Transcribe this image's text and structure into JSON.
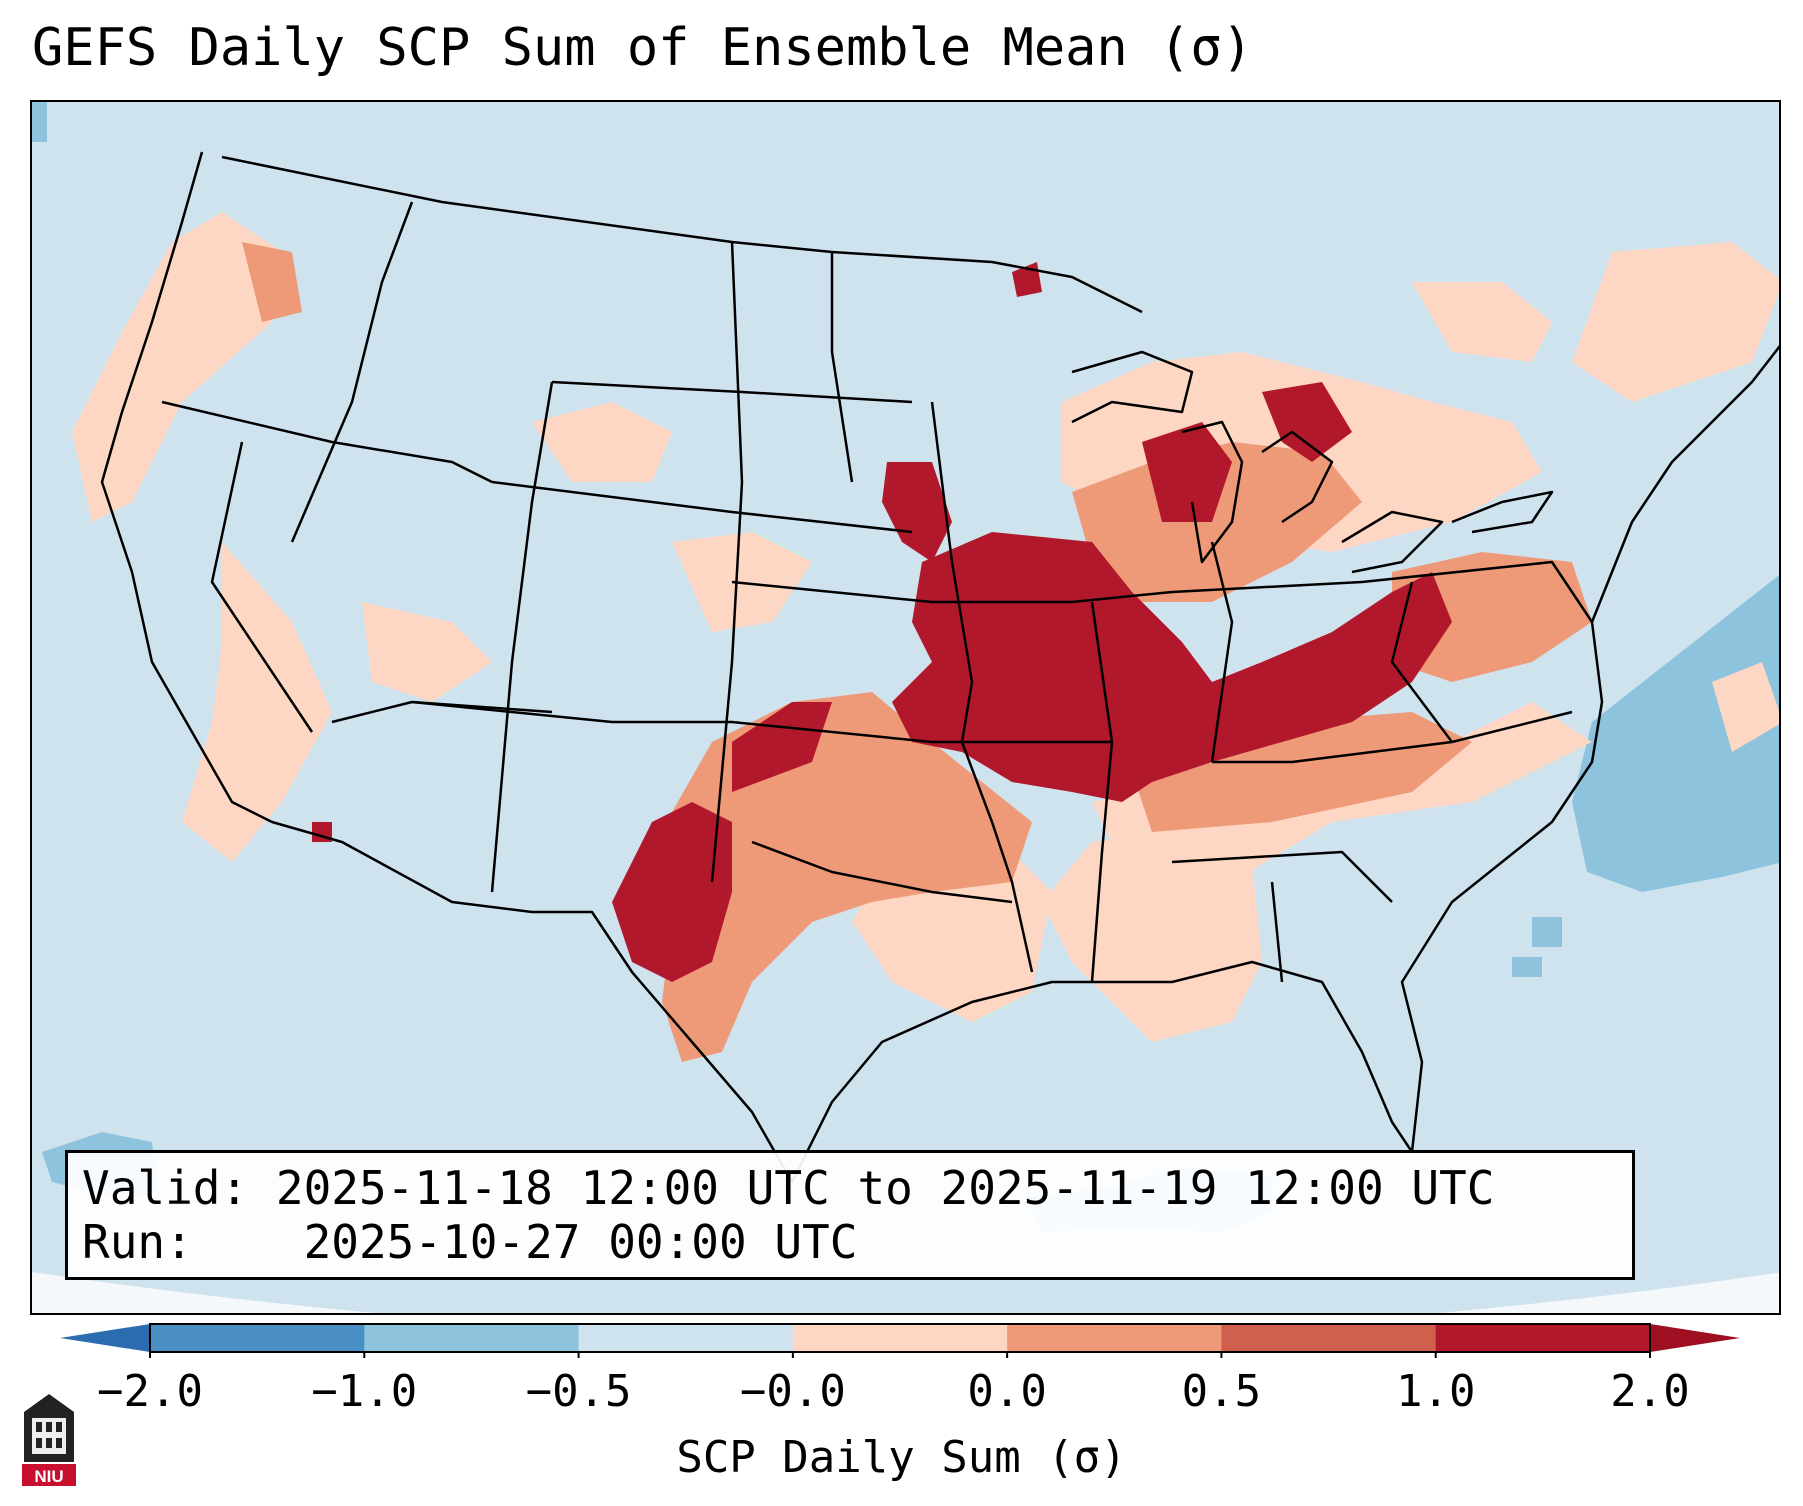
{
  "title": "GEFS Daily SCP Sum of Ensemble Mean (σ)",
  "info": {
    "valid_label": "Valid:",
    "valid_value": "2025-11-18 12:00 UTC to 2025-11-19 12:00 UTC",
    "run_label": "Run:",
    "run_value": "2025-10-27 00:00 UTC"
  },
  "colorbar": {
    "label": "SCP Daily Sum (σ)",
    "ticks": [
      "−2.0",
      "−1.0",
      "−0.5",
      "−0.0",
      "0.0",
      "0.5",
      "1.0",
      "2.0"
    ],
    "colors": [
      "#4a90c4",
      "#8ec3de",
      "#cfe3ef",
      "#fdd7c4",
      "#ee9a78",
      "#d05f4e",
      "#b2182b"
    ],
    "extend_low_color": "#2b6cb0",
    "extend_high_color": "#9e0f22"
  },
  "map": {
    "projection": "Lambert Conformal (CONUS)",
    "background_color": "#cfe3ef",
    "hotspots_strong": [
      "Iowa",
      "Missouri",
      "Illinois",
      "Indiana",
      "Ohio",
      "Kansas",
      "Texas Panhandle",
      "eastern New Mexico"
    ],
    "hotspots_moderate": [
      "Pennsylvania",
      "Michigan",
      "Oklahoma",
      "Arkansas",
      "Kentucky",
      "Tennessee",
      "Wisconsin"
    ],
    "negative_areas": [
      "western Atlantic",
      "Gulf of Mexico",
      "eastern Pacific"
    ]
  },
  "logo": {
    "text": "NIU",
    "name": "niu-logo"
  }
}
